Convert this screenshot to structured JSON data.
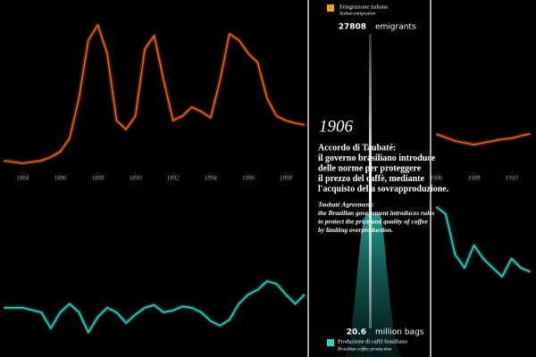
{
  "chart_data": [
    {
      "type": "line",
      "x": [
        1883,
        1884,
        1885,
        1885.5,
        1886,
        1886.5,
        1887,
        1887.5,
        1888,
        1888.5,
        1889,
        1889.5,
        1890,
        1890.5,
        1891,
        1891.5,
        1892,
        1892.5,
        1893,
        1893.5,
        1894,
        1894.5,
        1895,
        1895.5,
        1896,
        1896.5,
        1897,
        1897.5,
        1898,
        1898.5,
        1899,
        1899.5,
        1900,
        1900.5,
        1901,
        1901.5,
        1902,
        1902.5,
        1903,
        1903.5,
        1904,
        1904.5,
        1905,
        1905.5,
        1906,
        1906.5,
        1907,
        1907.5,
        1908,
        1908.5,
        1909,
        1909.5,
        1910,
        1910.5,
        1911
      ],
      "xlim": [
        1882.8,
        1911.3
      ],
      "xticks": [
        1884,
        1886,
        1888,
        1890,
        1892,
        1894,
        1896,
        1898,
        1906,
        1908,
        1910
      ],
      "ylim": [
        0,
        126000
      ],
      "series": [
        {
          "name": "Emigrazione italiana",
          "name_en": "Italian emigration",
          "color": "#f0641e",
          "values": [
            7000,
            4900,
            7000,
            9800,
            14000,
            24500,
            56000,
            101500,
            113400,
            91000,
            38500,
            31500,
            42000,
            94500,
            105000,
            70000,
            38500,
            42000,
            49000,
            45500,
            40600,
            70000,
            106400,
            101500,
            91000,
            84000,
            56000,
            42000,
            38500,
            36400,
            35000,
            null,
            null,
            null,
            null,
            null,
            null,
            null,
            null,
            null,
            null,
            null,
            null,
            null,
            27808,
            25200,
            22400,
            21000,
            19600,
            21000,
            22400,
            23800,
            24500,
            26600,
            28000
          ]
        }
      ],
      "highlight_unit": "emigrants"
    },
    {
      "type": "line",
      "x": [
        1883,
        1884,
        1885,
        1885.5,
        1886,
        1886.5,
        1887,
        1887.5,
        1888,
        1888.5,
        1889,
        1889.5,
        1890,
        1890.5,
        1891,
        1891.5,
        1892,
        1892.5,
        1893,
        1893.5,
        1894,
        1894.5,
        1895,
        1895.5,
        1896,
        1896.5,
        1897,
        1897.5,
        1898,
        1898.5,
        1899,
        1899.5,
        1900,
        1900.5,
        1901,
        1901.5,
        1902,
        1902.5,
        1903,
        1903.5,
        1904,
        1904.5,
        1905,
        1905.5,
        1906,
        1906.5,
        1907,
        1907.5,
        1908,
        1908.5,
        1909,
        1909.5,
        1910,
        1910.5,
        1911
      ],
      "xlim": [
        1882.8,
        1911.3
      ],
      "ylim": [
        0,
        25
      ],
      "series": [
        {
          "name": "Produzione di caffè brasiliano",
          "name_en": "Brazilian coffee production",
          "color": "#2ed6c6",
          "values": [
            5.4,
            5.4,
            4.7,
            2.3,
            4.7,
            6.0,
            4.7,
            1.7,
            4.0,
            5.4,
            4.7,
            3.1,
            4.4,
            5.4,
            5.8,
            4.7,
            5.0,
            5.6,
            5.4,
            4.7,
            3.4,
            2.7,
            3.6,
            6.0,
            7.4,
            8.1,
            9.4,
            9.0,
            7.4,
            6.0,
            7.4,
            null,
            null,
            null,
            null,
            null,
            null,
            null,
            null,
            null,
            null,
            null,
            null,
            null,
            20.6,
            19.5,
            13.4,
            11.4,
            14.8,
            12.8,
            11.4,
            10.1,
            12.8,
            11.4,
            10.8
          ]
        }
      ],
      "highlight_unit": "million bags"
    }
  ],
  "panel": {
    "year": "1906",
    "text_it": [
      "Accordo di Taubaté:",
      "il governo brasiliano introduce",
      "delle norme per proteggere",
      "il prezzo del caffè, mediante",
      "l'acquisto della sovrapproduzione."
    ],
    "text_en": [
      "Taubaté Agreement:",
      "the Brazilian government introduces rules",
      "to protect the price and quality of coffee",
      "by limiting overproduction."
    ]
  }
}
